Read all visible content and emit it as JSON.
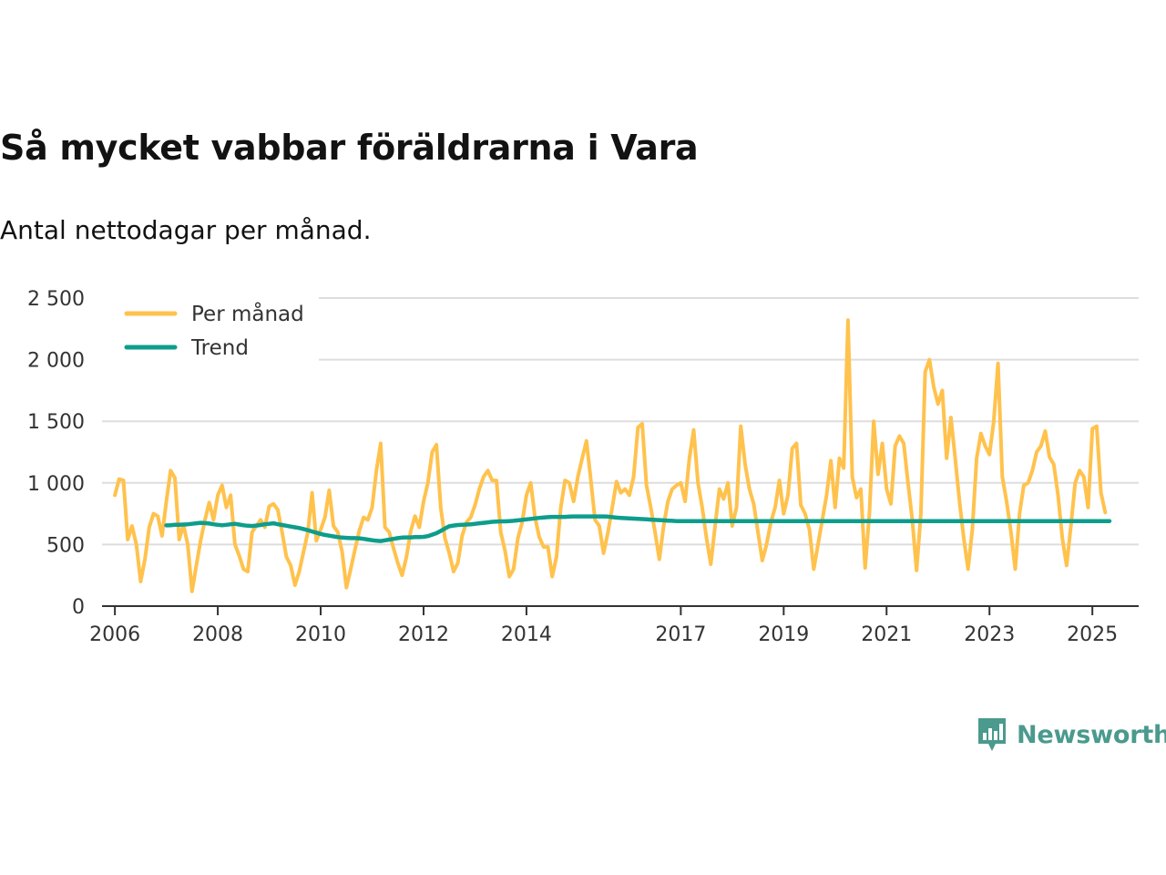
{
  "title": "Så mycket vabbar föräldrarna i Vara",
  "subtitle": "Antal nettodagar per månad.",
  "brand": "Newsworthy",
  "colors": {
    "monthly": "#FFC24D",
    "trend": "#0D9D8C",
    "grid": "#dddddd",
    "axis": "#333333",
    "brand": "#4a9a8d"
  },
  "chart_data": {
    "type": "line",
    "title": "Så mycket vabbar föräldrarna i Vara",
    "subtitle": "Antal nettodagar per månad.",
    "xlabel": "",
    "ylabel": "",
    "xlim": [
      2005.75,
      2025.9
    ],
    "ylim": [
      0,
      2500
    ],
    "yticks": [
      0,
      500,
      1000,
      1500,
      2000,
      2500
    ],
    "ytick_labels": [
      "0",
      "500",
      "1 000",
      "1 500",
      "2 000",
      "2 500"
    ],
    "xticks": [
      2006,
      2008,
      2010,
      2012,
      2014,
      2017,
      2019,
      2021,
      2023,
      2025
    ],
    "xtick_labels": [
      "2006",
      "2008",
      "2010",
      "2012",
      "2014",
      "2017",
      "2019",
      "2021",
      "2023",
      "2025"
    ],
    "grid": true,
    "legend_position": "top-left",
    "series": [
      {
        "name": "Per månad",
        "start": "2006-01",
        "values": [
          900,
          1030,
          1020,
          540,
          650,
          500,
          200,
          380,
          640,
          750,
          730,
          570,
          850,
          1100,
          1040,
          540,
          660,
          500,
          120,
          330,
          530,
          700,
          840,
          700,
          900,
          980,
          800,
          900,
          500,
          410,
          300,
          280,
          600,
          650,
          700,
          640,
          810,
          830,
          780,
          600,
          400,
          330,
          170,
          280,
          440,
          600,
          920,
          530,
          620,
          720,
          940,
          650,
          600,
          440,
          150,
          300,
          460,
          610,
          720,
          700,
          800,
          1100,
          1320,
          640,
          600,
          470,
          350,
          250,
          400,
          610,
          730,
          640,
          850,
          1000,
          1250,
          1310,
          800,
          550,
          430,
          280,
          350,
          570,
          680,
          720,
          820,
          950,
          1050,
          1100,
          1020,
          1020,
          600,
          450,
          240,
          300,
          550,
          680,
          900,
          1000,
          720,
          560,
          480,
          480,
          240,
          400,
          800,
          1020,
          1000,
          850,
          1050,
          1200,
          1340,
          1030,
          700,
          650,
          430,
          600,
          800,
          1010,
          920,
          950,
          900,
          1050,
          1450,
          1480,
          980,
          800,
          600,
          380,
          650,
          850,
          950,
          980,
          1000,
          850,
          1200,
          1430,
          1000,
          800,
          550,
          340,
          650,
          950,
          870,
          1000,
          650,
          800,
          1460,
          1150,
          950,
          830,
          600,
          370,
          500,
          680,
          800,
          1020,
          750,
          900,
          1280,
          1320,
          820,
          750,
          620,
          300,
          500,
          700,
          900,
          1180,
          800,
          1200,
          1120,
          2320,
          1050,
          880,
          950,
          310,
          750,
          1500,
          1070,
          1320,
          950,
          830,
          1300,
          1380,
          1320,
          1000,
          700,
          290,
          750,
          1900,
          2000,
          1780,
          1640,
          1750,
          1200,
          1530,
          1200,
          850,
          550,
          300,
          620,
          1200,
          1400,
          1300,
          1230,
          1500,
          1970,
          1050,
          850,
          600,
          300,
          750,
          980,
          1000,
          1100,
          1250,
          1300,
          1420,
          1210,
          1150,
          900,
          550,
          330,
          650,
          1000,
          1100,
          1050,
          800,
          1440,
          1460,
          920,
          760
        ]
      },
      {
        "name": "Trend",
        "start": "2007-01",
        "values": [
          655,
          657,
          660,
          660,
          662,
          664,
          668,
          672,
          676,
          674,
          670,
          664,
          660,
          656,
          660,
          664,
          668,
          662,
          656,
          652,
          650,
          654,
          658,
          664,
          668,
          672,
          664,
          658,
          652,
          646,
          640,
          634,
          626,
          616,
          606,
          596,
          586,
          578,
          572,
          566,
          560,
          556,
          554,
          552,
          552,
          550,
          546,
          540,
          535,
          530,
          528,
          534,
          540,
          546,
          552,
          556,
          558,
          558,
          560,
          560,
          562,
          568,
          580,
          592,
          610,
          630,
          648,
          654,
          658,
          660,
          662,
          664,
          668,
          672,
          676,
          680,
          684,
          686,
          688,
          688,
          690,
          692,
          696,
          700,
          704,
          708,
          712,
          716,
          720,
          722,
          724,
          724,
          724,
          724,
          726,
          728,
          728,
          728,
          728,
          728,
          728,
          728,
          728,
          726,
          722,
          718,
          716,
          714,
          712,
          710,
          708,
          706,
          704,
          702,
          700,
          698,
          696,
          694,
          692,
          690,
          690,
          690,
          690,
          690,
          690,
          690,
          690,
          690,
          690,
          690,
          690,
          690,
          690,
          690,
          690,
          690,
          690,
          690,
          690,
          690,
          690,
          690,
          690,
          690,
          690,
          690,
          690,
          690,
          690,
          690,
          690,
          690,
          690,
          690,
          690,
          690,
          690,
          690,
          690,
          690,
          690,
          690,
          690,
          690,
          690,
          690,
          690,
          690,
          690,
          690,
          690,
          690,
          690,
          690,
          690,
          690,
          690,
          690,
          690,
          690,
          690,
          690,
          690,
          690,
          690,
          690,
          690,
          690,
          690,
          690,
          690,
          690,
          690,
          690,
          690,
          690,
          690,
          690,
          690,
          690,
          690,
          690,
          690,
          690,
          690,
          690,
          690,
          690,
          690,
          690,
          690,
          690,
          690,
          690,
          690,
          690,
          690,
          690,
          690,
          690,
          690
        ]
      }
    ]
  }
}
